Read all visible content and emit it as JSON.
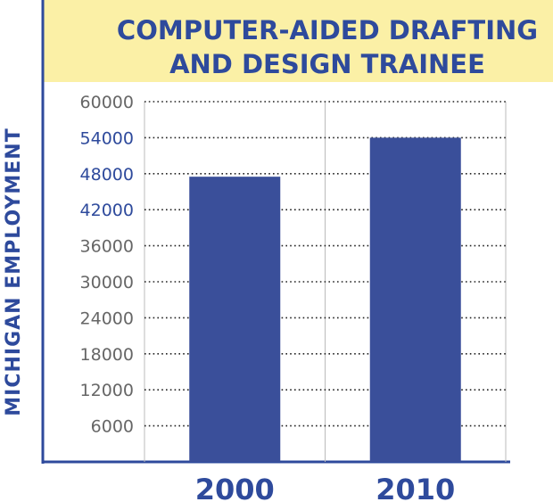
{
  "chart_data": {
    "type": "bar",
    "title": "COMPUTER-AIDED DRAFTING AND DESIGN TRAINEE",
    "title_lines": [
      "COMPUTER-AIDED DRAFTING",
      "AND DESIGN TRAINEE"
    ],
    "ylabel": "MICHIGAN EMPLOYMENT",
    "xlabel": "",
    "categories": [
      "2000",
      "2010"
    ],
    "values": [
      47500,
      54000
    ],
    "yticks": [
      "6000",
      "12000",
      "18000",
      "24000",
      "30000",
      "36000",
      "42000",
      "48000",
      "54000",
      "60000"
    ],
    "highlighted_ticks": [
      "42000",
      "48000",
      "54000"
    ],
    "ylim": [
      0,
      60000
    ],
    "grid": true,
    "colors": {
      "bar": "#3a4f9a",
      "title_band": "#fbf0a6",
      "accent": "#2e4a9c",
      "tick_text": "#666666",
      "axis": "#2e4a9c"
    }
  }
}
